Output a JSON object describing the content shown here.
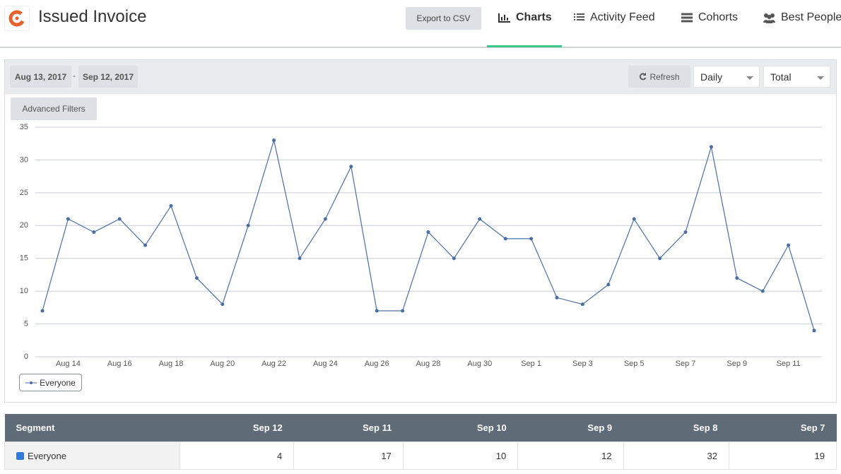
{
  "header": {
    "title": "Issued Invoice",
    "export_button": "Export to CSV",
    "tabs": [
      "Charts",
      "Activity Feed",
      "Cohorts",
      "Best People"
    ]
  },
  "toolbar": {
    "start_date": "Aug 13, 2017",
    "separator": "-",
    "end_date": "Sep 12, 2017",
    "refresh": "Refresh",
    "interval": "Daily",
    "measure": "Total",
    "filters": "Advanced Filters"
  },
  "chart_data": {
    "type": "line",
    "categories": [
      null,
      "Aug 14",
      null,
      "Aug 16",
      null,
      "Aug 18",
      null,
      "Aug 20",
      null,
      "Aug 22",
      null,
      "Aug 24",
      null,
      "Aug 26",
      null,
      "Aug 28",
      null,
      "Aug 30",
      null,
      "Sep 1",
      null,
      "Sep 3",
      null,
      "Sep 5",
      null,
      "Sep 7",
      null,
      "Sep 9",
      null,
      "Sep 11",
      null
    ],
    "series": [
      {
        "name": "Everyone",
        "color": "#4a6fa5",
        "values": [
          7,
          21,
          19,
          21,
          17,
          23,
          12,
          8,
          20,
          33,
          15,
          21,
          29,
          7,
          7,
          19,
          15,
          21,
          18,
          18,
          9,
          8,
          11,
          21,
          15,
          19,
          32,
          12,
          10,
          17,
          4
        ]
      }
    ],
    "ylim": [
      0,
      35
    ],
    "yticks": [
      0,
      5,
      10,
      15,
      20,
      25,
      30,
      35
    ],
    "grid": true
  },
  "table": {
    "columns": [
      "Segment",
      "Sep 12",
      "Sep 11",
      "Sep 10",
      "Sep 9",
      "Sep 8",
      "Sep 7"
    ],
    "rows": [
      [
        "Everyone",
        4,
        17,
        10,
        12,
        32,
        19
      ]
    ]
  }
}
